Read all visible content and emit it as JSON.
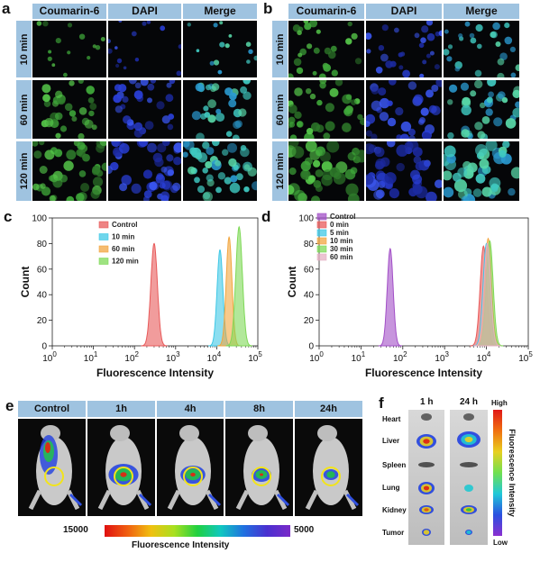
{
  "panels": {
    "a": "a",
    "b": "b",
    "c": "c",
    "d": "d",
    "e": "e",
    "f": "f"
  },
  "microscopy": {
    "columns": [
      "Coumarin-6",
      "DAPI",
      "Merge"
    ],
    "rows": [
      "10 min",
      "60 min",
      "120 min"
    ]
  },
  "colors": {
    "header_bg": "#9fc3e0",
    "control_red": "#e85a5a",
    "cyan": "#3fc8e6",
    "orange": "#f2a640",
    "green": "#7ed957",
    "purple": "#a24fc7",
    "pink": "#e5b0c3"
  },
  "chart_data": [
    {
      "type": "area",
      "panel": "c",
      "xlabel": "Fluorescence Intensity",
      "ylabel": "Count",
      "xscale": "log",
      "xlim": [
        1,
        100000
      ],
      "ylim": [
        0,
        100
      ],
      "xticks": [
        "10^0",
        "10^1",
        "10^2",
        "10^3",
        "10^4",
        "10^5"
      ],
      "yticks": [
        0,
        20,
        40,
        60,
        80,
        100
      ],
      "legend_position": "top-left",
      "series": [
        {
          "name": "Control",
          "peak_x": 300,
          "peak_y": 80,
          "color": "#e85a5a"
        },
        {
          "name": "10 min",
          "peak_x": 12000,
          "peak_y": 75,
          "color": "#3fc8e6"
        },
        {
          "name": "60 min",
          "peak_x": 20000,
          "peak_y": 85,
          "color": "#f2a640"
        },
        {
          "name": "120 min",
          "peak_x": 35000,
          "peak_y": 93,
          "color": "#7ed957"
        }
      ]
    },
    {
      "type": "area",
      "panel": "d",
      "xlabel": "Fluorescence Intensity",
      "ylabel": "Count",
      "xscale": "log",
      "xlim": [
        1,
        100000
      ],
      "ylim": [
        0,
        100
      ],
      "xticks": [
        "10^0",
        "10^1",
        "10^2",
        "10^3",
        "10^4",
        "10^5"
      ],
      "yticks": [
        0,
        20,
        40,
        60,
        80,
        100
      ],
      "legend_position": "top-left",
      "series": [
        {
          "name": "Control",
          "peak_x": 50,
          "peak_y": 76,
          "color": "#a24fc7"
        },
        {
          "name": "0 min",
          "peak_x": 8500,
          "peak_y": 78,
          "color": "#e85a5a"
        },
        {
          "name": "5 min",
          "peak_x": 10000,
          "peak_y": 80,
          "color": "#3fc8e6"
        },
        {
          "name": "10 min",
          "peak_x": 11000,
          "peak_y": 84,
          "color": "#f2a640"
        },
        {
          "name": "30 min",
          "peak_x": 12000,
          "peak_y": 82,
          "color": "#7ed957"
        },
        {
          "name": "60 min",
          "peak_x": 10500,
          "peak_y": 80,
          "color": "#e5b0c3"
        }
      ]
    }
  ],
  "imaging": {
    "timepoints": [
      "Control",
      "1h",
      "4h",
      "8h",
      "24h"
    ],
    "colorbar_high": "15000",
    "colorbar_low": "5000",
    "colorbar_label": "Fluorescence Intensity"
  },
  "organs": {
    "columns": [
      "1 h",
      "24 h"
    ],
    "rows": [
      "Heart",
      "Liver",
      "Spleen",
      "Lung",
      "Kidney",
      "Tumor"
    ],
    "scale_high": "High",
    "scale_low": "Low",
    "scale_label": "Fluorescence Intensity"
  }
}
